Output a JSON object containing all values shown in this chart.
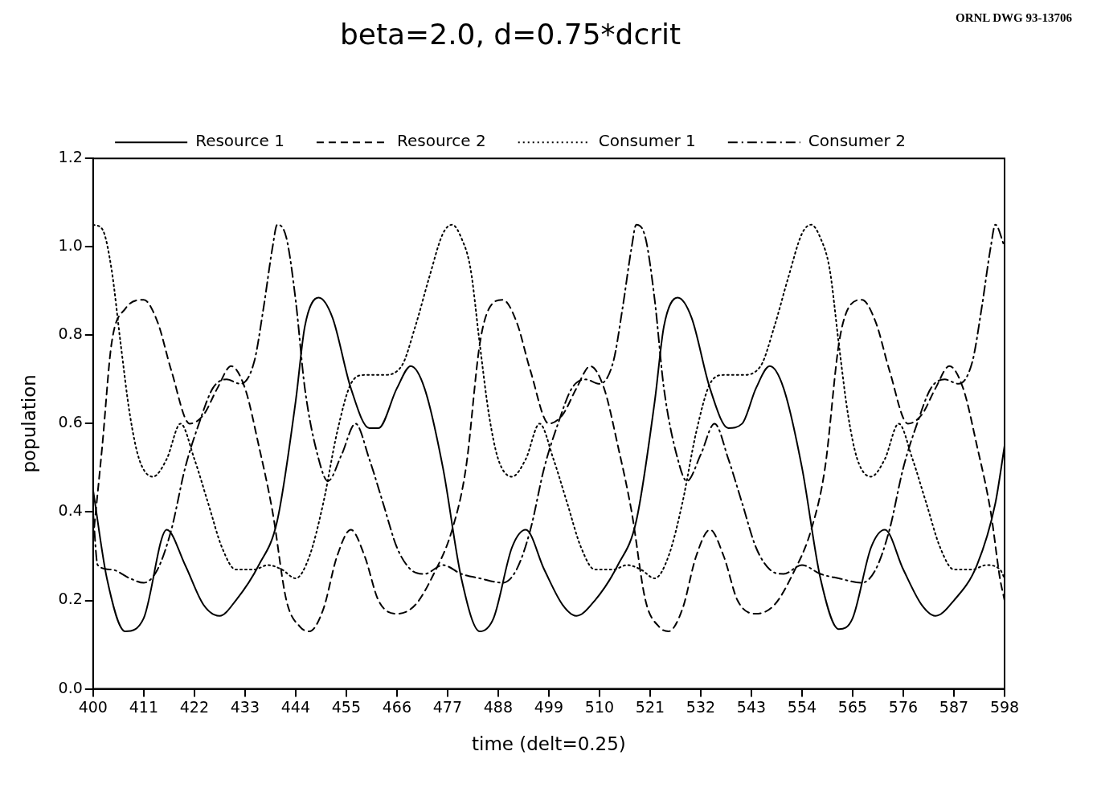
{
  "chart_data": {
    "type": "line",
    "title": "beta=2.0, d=0.75*dcrit",
    "xlabel": "time (delt=0.25)",
    "ylabel": "population",
    "annotations": [
      "ORNL DWG 93-13706"
    ],
    "xlim": [
      400,
      598
    ],
    "xticks": [
      400,
      411,
      422,
      433,
      444,
      455,
      466,
      477,
      488,
      499,
      510,
      521,
      532,
      543,
      554,
      565,
      576,
      587,
      598
    ],
    "ylim": [
      0,
      1.2
    ],
    "yticks": [
      {
        "value": 0,
        "label": "0.0"
      },
      {
        "value": 0.2,
        "label": "0.2"
      },
      {
        "value": 0.4,
        "label": "0.4"
      },
      {
        "value": 0.6,
        "label": "0.6"
      },
      {
        "value": 0.8,
        "label": "0.8"
      },
      {
        "value": 1,
        "label": "1.0"
      },
      {
        "value": 1.2,
        "label": "1.2"
      }
    ],
    "grid": false,
    "legend": "top",
    "marker": "none",
    "series": [
      {
        "name": "Resource 1",
        "color": "#000000",
        "line_style": "solid",
        "x": [
          400,
          403,
          407,
          411,
          416,
          420,
          424,
          427.5,
          431,
          436,
          440,
          444,
          446,
          449,
          452,
          456,
          460,
          462,
          466,
          469,
          472,
          476,
          480,
          484,
          487,
          491,
          494,
          498,
          502,
          505,
          509,
          514,
          518,
          522,
          524,
          527,
          530,
          534,
          538,
          541,
          544,
          547,
          550,
          554,
          558,
          562,
          565,
          569,
          572,
          576,
          580,
          583,
          587,
          592,
          596,
          598
        ],
        "values": [
          0.45,
          0.25,
          0.13,
          0.16,
          0.36,
          0.28,
          0.19,
          0.165,
          0.2,
          0.28,
          0.38,
          0.65,
          0.82,
          0.885,
          0.84,
          0.68,
          0.59,
          0.59,
          0.68,
          0.73,
          0.68,
          0.5,
          0.25,
          0.13,
          0.16,
          0.32,
          0.36,
          0.27,
          0.19,
          0.165,
          0.2,
          0.28,
          0.38,
          0.65,
          0.82,
          0.885,
          0.84,
          0.68,
          0.59,
          0.6,
          0.68,
          0.73,
          0.68,
          0.5,
          0.25,
          0.135,
          0.16,
          0.32,
          0.36,
          0.27,
          0.19,
          0.165,
          0.2,
          0.28,
          0.42,
          0.55
        ]
      },
      {
        "name": "Resource 2",
        "color": "#000000",
        "line_style": "dashed",
        "x": [
          400,
          402,
          404,
          407,
          411,
          414,
          417,
          421,
          424,
          427,
          430,
          433,
          436,
          439,
          442,
          445,
          447,
          450,
          453,
          456,
          459,
          462,
          466,
          470,
          474,
          478,
          481,
          484,
          486,
          489,
          492,
          495,
          499,
          502,
          505,
          508,
          511,
          514,
          517,
          520,
          523,
          525,
          528,
          531,
          534,
          537,
          540,
          544,
          548,
          552,
          556,
          559,
          562,
          564,
          567,
          570,
          573,
          577,
          580,
          583,
          586,
          589,
          592,
          595,
          597,
          598
        ],
        "values": [
          0.34,
          0.55,
          0.78,
          0.86,
          0.88,
          0.83,
          0.72,
          0.6,
          0.62,
          0.68,
          0.73,
          0.68,
          0.55,
          0.4,
          0.2,
          0.14,
          0.13,
          0.18,
          0.3,
          0.36,
          0.3,
          0.2,
          0.17,
          0.19,
          0.26,
          0.36,
          0.5,
          0.78,
          0.86,
          0.88,
          0.83,
          0.72,
          0.6,
          0.62,
          0.68,
          0.73,
          0.68,
          0.55,
          0.4,
          0.2,
          0.14,
          0.13,
          0.18,
          0.3,
          0.36,
          0.3,
          0.2,
          0.17,
          0.19,
          0.26,
          0.36,
          0.5,
          0.78,
          0.86,
          0.88,
          0.83,
          0.72,
          0.6,
          0.62,
          0.68,
          0.73,
          0.68,
          0.55,
          0.4,
          0.25,
          0.2
        ]
      },
      {
        "name": "Consumer 1",
        "color": "#000000",
        "line_style": "dotted",
        "x": [
          400,
          402,
          404,
          406,
          408,
          410,
          413,
          416,
          419,
          422,
          425,
          428,
          431,
          435,
          438,
          441,
          444,
          447,
          450,
          453,
          456,
          459,
          463,
          467,
          470,
          473,
          476,
          478,
          480,
          482,
          484,
          486,
          488,
          491,
          494,
          497,
          500,
          503,
          506,
          509,
          513,
          516,
          519,
          522,
          525,
          528,
          531,
          534,
          537,
          541,
          545,
          548,
          551,
          554,
          556,
          558,
          560,
          562,
          564,
          566,
          569,
          572,
          575,
          578,
          581,
          584,
          587,
          591,
          594,
          597,
          598
        ],
        "values": [
          1.05,
          1.04,
          0.95,
          0.78,
          0.62,
          0.52,
          0.48,
          0.52,
          0.6,
          0.52,
          0.42,
          0.32,
          0.27,
          0.27,
          0.28,
          0.27,
          0.25,
          0.3,
          0.42,
          0.58,
          0.69,
          0.71,
          0.71,
          0.73,
          0.82,
          0.93,
          1.03,
          1.05,
          1.02,
          0.95,
          0.78,
          0.62,
          0.52,
          0.48,
          0.52,
          0.6,
          0.52,
          0.42,
          0.32,
          0.27,
          0.27,
          0.28,
          0.27,
          0.25,
          0.3,
          0.42,
          0.58,
          0.69,
          0.71,
          0.71,
          0.73,
          0.82,
          0.93,
          1.03,
          1.05,
          1.02,
          0.95,
          0.78,
          0.62,
          0.52,
          0.48,
          0.52,
          0.6,
          0.52,
          0.42,
          0.32,
          0.27,
          0.27,
          0.28,
          0.27,
          0.25
        ]
      },
      {
        "name": "Consumer 2",
        "color": "#000000",
        "line_style": "dashdot",
        "x": [
          400,
          401,
          404,
          408,
          411,
          414,
          417,
          420,
          423,
          426,
          429,
          432,
          435,
          437,
          439,
          440,
          442,
          444,
          446,
          449,
          451,
          454,
          457,
          460,
          463,
          466,
          469,
          472,
          476,
          480,
          484,
          489,
          492,
          495,
          498,
          501,
          504,
          507,
          510,
          513,
          515,
          517,
          518,
          520,
          522,
          524,
          527,
          529,
          532,
          535,
          538,
          541,
          544,
          547,
          550,
          554,
          558,
          562,
          567,
          570,
          573,
          576,
          579,
          582,
          585,
          588,
          591,
          593,
          595,
          596,
          598
        ],
        "values": [
          0.4,
          0.28,
          0.27,
          0.25,
          0.24,
          0.27,
          0.36,
          0.5,
          0.6,
          0.68,
          0.7,
          0.69,
          0.74,
          0.86,
          1.0,
          1.05,
          1.02,
          0.88,
          0.68,
          0.52,
          0.47,
          0.53,
          0.6,
          0.52,
          0.42,
          0.32,
          0.27,
          0.26,
          0.28,
          0.26,
          0.25,
          0.24,
          0.27,
          0.36,
          0.5,
          0.6,
          0.68,
          0.7,
          0.69,
          0.74,
          0.86,
          1.0,
          1.05,
          1.02,
          0.88,
          0.68,
          0.52,
          0.47,
          0.53,
          0.6,
          0.52,
          0.42,
          0.32,
          0.27,
          0.26,
          0.28,
          0.26,
          0.25,
          0.24,
          0.27,
          0.36,
          0.5,
          0.6,
          0.68,
          0.7,
          0.69,
          0.74,
          0.86,
          1.0,
          1.05,
          1.0
        ]
      }
    ]
  }
}
